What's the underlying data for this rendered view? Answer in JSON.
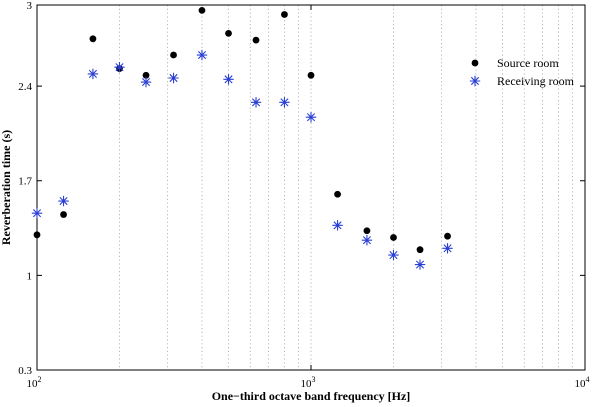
{
  "chart_data": {
    "type": "scatter",
    "title": "",
    "xlabel": "One−third octave band frequency [Hz]",
    "ylabel": "Reverberation time (s)",
    "x_scale": "log",
    "xlim": [
      100,
      10000
    ],
    "ylim": [
      0.3,
      3
    ],
    "x_tick_labels": [
      {
        "base": "10",
        "exp": "2",
        "value": 100
      },
      {
        "base": "10",
        "exp": "3",
        "value": 1000
      },
      {
        "base": "10",
        "exp": "4",
        "value": 10000
      }
    ],
    "y_ticks": [
      {
        "label": "0.3",
        "value": 0.3
      },
      {
        "label": "1",
        "value": 1
      },
      {
        "label": "1.7",
        "value": 1.7
      },
      {
        "label": "2.4",
        "value": 2.4
      },
      {
        "label": "3",
        "value": 3
      }
    ],
    "grid": {
      "x_minor_dotted": true,
      "y": false
    },
    "legend_placement": "top-right",
    "series": [
      {
        "name": "Source room",
        "marker": "filled-circle",
        "color": "#000000",
        "points": [
          {
            "x": 100,
            "y": 1.3
          },
          {
            "x": 125,
            "y": 1.45
          },
          {
            "x": 160,
            "y": 2.75
          },
          {
            "x": 200,
            "y": 2.53
          },
          {
            "x": 250,
            "y": 2.48
          },
          {
            "x": 315,
            "y": 2.63
          },
          {
            "x": 400,
            "y": 2.96
          },
          {
            "x": 500,
            "y": 2.79
          },
          {
            "x": 630,
            "y": 2.74
          },
          {
            "x": 800,
            "y": 2.93
          },
          {
            "x": 1000,
            "y": 2.48
          },
          {
            "x": 1250,
            "y": 1.6
          },
          {
            "x": 1600,
            "y": 1.33
          },
          {
            "x": 2000,
            "y": 1.28
          },
          {
            "x": 2500,
            "y": 1.19
          },
          {
            "x": 3150,
            "y": 1.29
          }
        ]
      },
      {
        "name": "Receiving room",
        "marker": "asterisk",
        "color": "#2a3fd4",
        "points": [
          {
            "x": 100,
            "y": 1.46
          },
          {
            "x": 125,
            "y": 1.55
          },
          {
            "x": 160,
            "y": 2.49
          },
          {
            "x": 200,
            "y": 2.54
          },
          {
            "x": 250,
            "y": 2.43
          },
          {
            "x": 315,
            "y": 2.46
          },
          {
            "x": 400,
            "y": 2.63
          },
          {
            "x": 500,
            "y": 2.45
          },
          {
            "x": 630,
            "y": 2.28
          },
          {
            "x": 800,
            "y": 2.28
          },
          {
            "x": 1000,
            "y": 2.17
          },
          {
            "x": 1250,
            "y": 1.37
          },
          {
            "x": 1600,
            "y": 1.26
          },
          {
            "x": 2000,
            "y": 1.15
          },
          {
            "x": 2500,
            "y": 1.08
          },
          {
            "x": 3150,
            "y": 1.2
          }
        ]
      }
    ]
  }
}
